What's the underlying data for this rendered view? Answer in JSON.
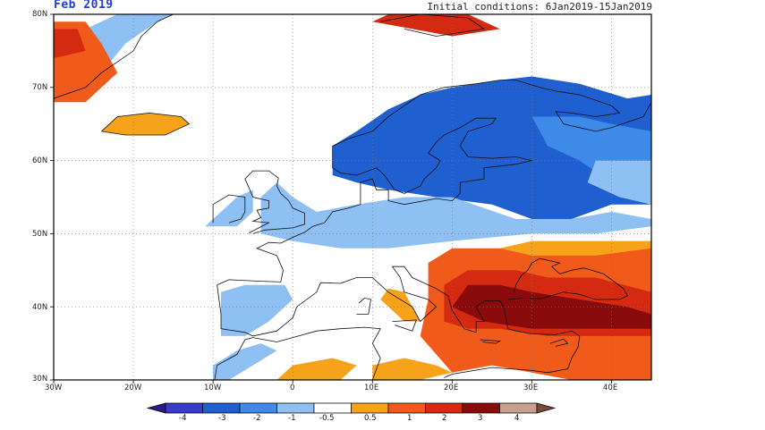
{
  "header": {
    "title": "Feb 2019",
    "initial_conditions": "Initial conditions: 6Jan2019-15Jan2019"
  },
  "axes": {
    "lat_labels": [
      "80N",
      "70N",
      "60N",
      "50N",
      "40N",
      "30N"
    ],
    "lon_labels": [
      "30W",
      "20W",
      "10W",
      "0",
      "10E",
      "20E",
      "30E",
      "40E"
    ]
  },
  "colorbar": {
    "ticks": [
      "-4",
      "-3",
      "-2",
      "-1",
      "-0.5",
      "0.5",
      "1",
      "2",
      "3",
      "4"
    ],
    "colors": [
      "#2a1a8c",
      "#3b3bc9",
      "#1f5fd0",
      "#3d8ae8",
      "#8ec0f4",
      "#ffffff",
      "#f7a21b",
      "#f05a1a",
      "#d42a12",
      "#8a0b0b",
      "#c9a08f",
      "#7a4a3a"
    ]
  },
  "map": {
    "lon_range": [
      -30,
      45
    ],
    "lat_range": [
      30,
      80
    ],
    "colors": {
      "orange": "#f7a21b",
      "red_orange": "#f05a1a",
      "red": "#d42a12",
      "dark_red": "#8a0b0b",
      "light_blue": "#8ec0f4",
      "mid_blue": "#3d8ae8",
      "blue": "#1f5fd0",
      "coast": "#111111",
      "grid": "#777777"
    }
  }
}
